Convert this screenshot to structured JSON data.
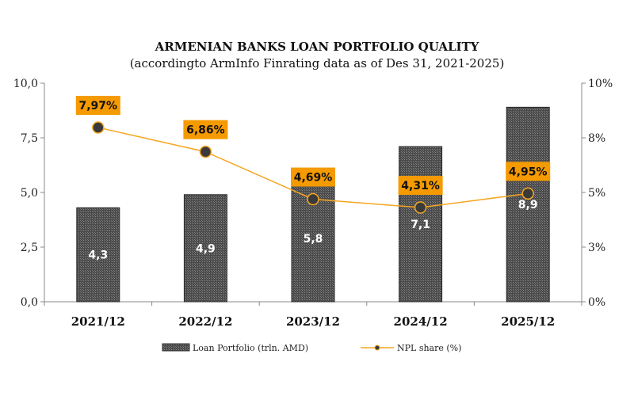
{
  "chart_data": {
    "type": "bar",
    "title": "ARMENIAN BANKS LOAN PORTFOLIO QUALITY",
    "subtitle": "(accordingto ArmInfo Finrating data as of Des 31, 2021-2025)",
    "categories": [
      "2021/12",
      "2022/12",
      "2023/12",
      "2024/12",
      "2025/12"
    ],
    "series": [
      {
        "name": "Loan Portfolio (trln. AMD)",
        "type": "bar",
        "axis": "left",
        "values": [
          4.3,
          4.9,
          5.8,
          7.1,
          8.9
        ],
        "labels": [
          "4,3",
          "4,9",
          "5,8",
          "7,1",
          "8,9"
        ],
        "color": "#555555"
      },
      {
        "name": "NPL share (%)",
        "type": "line",
        "axis": "right",
        "values": [
          7.97,
          6.86,
          4.69,
          4.31,
          4.95
        ],
        "labels": [
          "7,97%",
          "6,86%",
          "4,69%",
          "4,31%",
          "4,95%"
        ],
        "color": "#f5a623",
        "marker_color": "#3a3a3a",
        "label_bg": "#f59a00"
      }
    ],
    "y_left": {
      "lim": [
        0,
        10
      ],
      "ticks": [
        "0,0",
        "2,5",
        "5,0",
        "7,5",
        "10,0"
      ],
      "tick_values": [
        0,
        2.5,
        5,
        7.5,
        10
      ]
    },
    "y_right": {
      "lim": [
        0,
        10
      ],
      "ticks": [
        "0%",
        "3%",
        "5%",
        "8%",
        "10%"
      ],
      "tick_values": [
        0,
        2.5,
        5,
        7.5,
        10
      ]
    },
    "legend_position": "bottom",
    "grid": false
  }
}
